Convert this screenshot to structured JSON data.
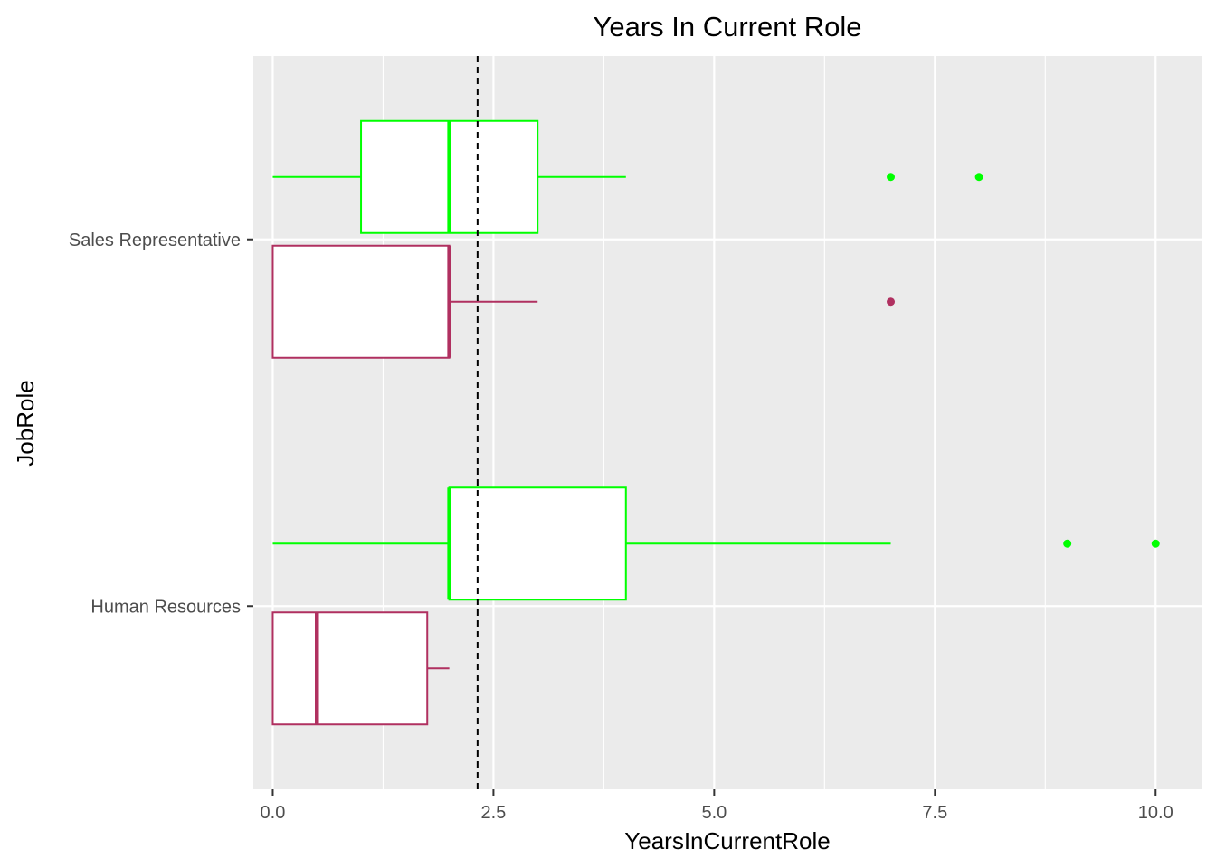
{
  "chart_data": {
    "type": "boxplot",
    "orientation": "horizontal",
    "title": "Years In Current Role",
    "xlabel": "YearsInCurrentRole",
    "ylabel": "JobRole",
    "xlim": [
      -0.22,
      10.52
    ],
    "x_ticks": [
      0.0,
      2.5,
      5.0,
      7.5,
      10.0
    ],
    "x_tick_labels": [
      "0.0",
      "2.5",
      "5.0",
      "7.5",
      "10.0"
    ],
    "categories": [
      "Human Resources",
      "Sales Representative"
    ],
    "grid": true,
    "panel_background": "#ebebeb",
    "reference_line": {
      "x": 2.32,
      "style": "dashed",
      "color": "#000000"
    },
    "groups": [
      {
        "category": "Sales Representative",
        "color": "#00ff00",
        "min": 0,
        "q1": 1,
        "median": 2,
        "q3": 3,
        "max": 4,
        "outliers": [
          7,
          8
        ]
      },
      {
        "category": "Sales Representative",
        "color": "#b03060",
        "min": 0,
        "q1": 0,
        "median": 2,
        "q3": 2,
        "max": 3,
        "outliers": [
          7
        ]
      },
      {
        "category": "Human Resources",
        "color": "#00ff00",
        "min": 0,
        "q1": 2,
        "median": 2,
        "q3": 4,
        "max": 7,
        "outliers": [
          9,
          10
        ]
      },
      {
        "category": "Human Resources",
        "color": "#b03060",
        "min": 0,
        "q1": 0,
        "median": 0.5,
        "q3": 1.75,
        "max": 2,
        "outliers": []
      }
    ]
  }
}
